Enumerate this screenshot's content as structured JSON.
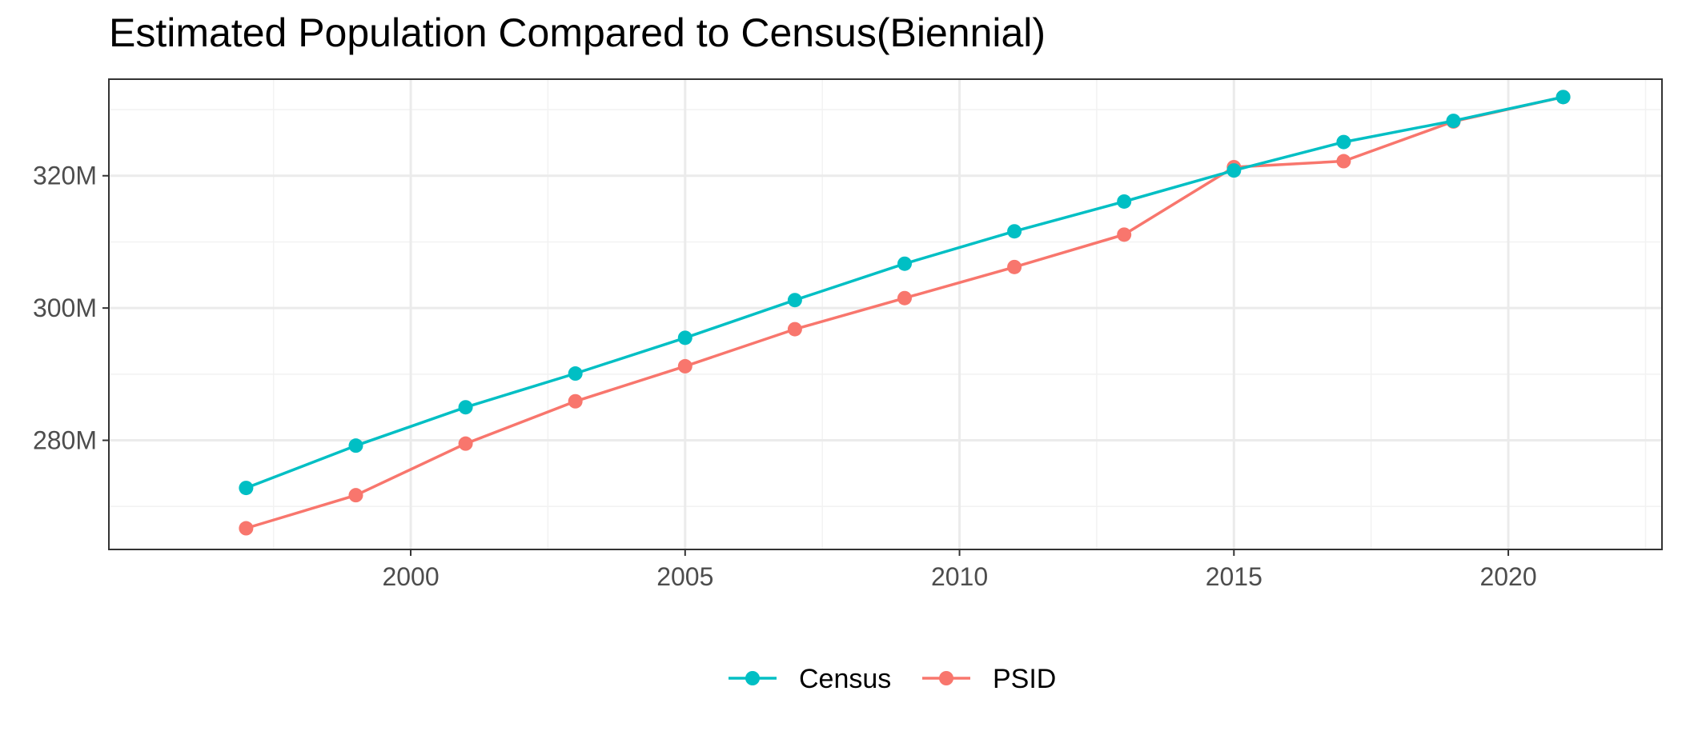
{
  "chart_data": {
    "type": "line",
    "title": "Estimated Population Compared to Census(Biennial)",
    "xlabel": "",
    "ylabel": "",
    "x": [
      1997,
      1999,
      2001,
      2003,
      2005,
      2007,
      2009,
      2011,
      2013,
      2015,
      2017,
      2019,
      2021
    ],
    "xlim": [
      1994.5,
      2022.8
    ],
    "ylim": [
      263500000,
      334600000
    ],
    "x_ticks": [
      2000,
      2005,
      2010,
      2015,
      2020
    ],
    "x_tick_labels": [
      "2000",
      "2005",
      "2010",
      "2015",
      "2020"
    ],
    "y_ticks": [
      280000000,
      300000000,
      320000000
    ],
    "y_tick_labels": [
      "280M",
      "300M",
      "320M"
    ],
    "grid": true,
    "legend_position": "bottom",
    "series": [
      {
        "name": "Census",
        "color": "#00BFC4",
        "values": [
          272800000,
          279200000,
          285000000,
          290100000,
          295500000,
          301200000,
          306700000,
          311600000,
          316100000,
          320800000,
          325100000,
          328300000,
          331900000
        ]
      },
      {
        "name": "PSID",
        "color": "#F8766D",
        "values": [
          266700000,
          271700000,
          279500000,
          285900000,
          291200000,
          296800000,
          301500000,
          306200000,
          311100000,
          321300000,
          322200000,
          328200000,
          331900000
        ]
      }
    ]
  }
}
